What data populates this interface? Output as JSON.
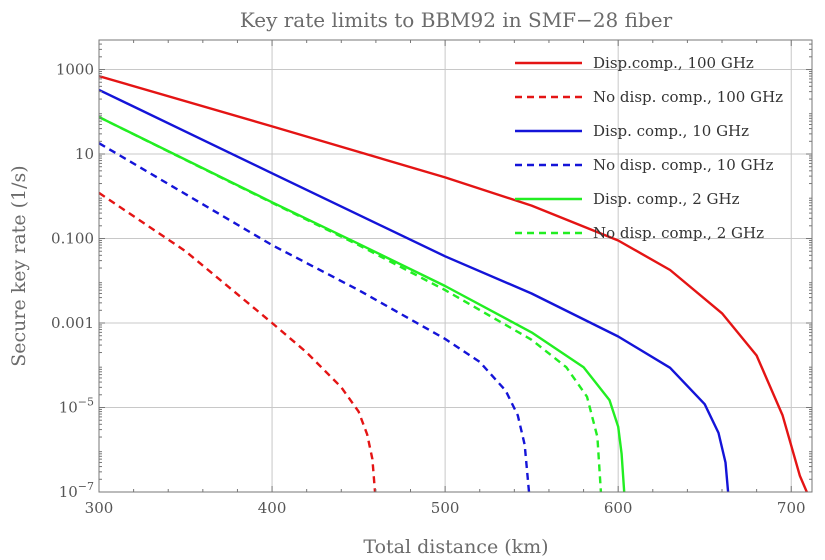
{
  "chart_data": {
    "type": "line",
    "title": "Key rate limits to BBM92 in SMF−28 fiber",
    "xlabel": "Total distance (km)",
    "ylabel": "Secure key rate (1/s)",
    "xlim": [
      300,
      712
    ],
    "ylim": [
      1e-07,
      5000
    ],
    "yscale": "log",
    "grid": true,
    "legend_position": "top-right",
    "x_ticks": [
      {
        "value": 300,
        "label": "300"
      },
      {
        "value": 400,
        "label": "400"
      },
      {
        "value": 500,
        "label": "500"
      },
      {
        "value": 600,
        "label": "600"
      },
      {
        "value": 700,
        "label": "700"
      }
    ],
    "y_ticks": [
      {
        "value": 1000,
        "label": "1000",
        "sup": ""
      },
      {
        "value": 10,
        "label": "10",
        "sup": ""
      },
      {
        "value": 0.1,
        "label": "0.100",
        "sup": ""
      },
      {
        "value": 0.001,
        "label": "0.001",
        "sup": ""
      },
      {
        "value": 1e-05,
        "label": "10",
        "sup": "−5"
      },
      {
        "value": 1e-07,
        "label": "10",
        "sup": "−7"
      }
    ],
    "series": [
      {
        "name": "Disp.comp., 100 GHz",
        "color": "#e41414",
        "dash": "solid",
        "points": [
          [
            300,
            700
          ],
          [
            400,
            45
          ],
          [
            500,
            2.8
          ],
          [
            550,
            0.6
          ],
          [
            600,
            0.09
          ],
          [
            630,
            0.018
          ],
          [
            660,
            0.0017
          ],
          [
            680,
            0.00017
          ],
          [
            695,
            6.5e-06
          ],
          [
            705,
            2.4e-07
          ],
          [
            709,
            1e-07
          ]
        ]
      },
      {
        "name": "No disp. comp., 100 GHz",
        "color": "#e41414",
        "dash": "dashed",
        "points": [
          [
            300,
            1.2
          ],
          [
            350,
            0.05
          ],
          [
            400,
            0.001
          ],
          [
            420,
            0.0002
          ],
          [
            440,
            3e-05
          ],
          [
            450,
            8e-06
          ],
          [
            455,
            2.3e-06
          ],
          [
            458,
            6e-07
          ],
          [
            459.5,
            1e-07
          ]
        ]
      },
      {
        "name": "Disp. comp., 10 GHz",
        "color": "#1414d8",
        "dash": "solid",
        "points": [
          [
            300,
            330
          ],
          [
            400,
            3.5
          ],
          [
            500,
            0.038
          ],
          [
            550,
            0.005
          ],
          [
            600,
            0.00048
          ],
          [
            630,
            8.7e-05
          ],
          [
            650,
            1.2e-05
          ],
          [
            658,
            2.5e-06
          ],
          [
            662,
            5e-07
          ],
          [
            663.5,
            1e-07
          ]
        ]
      },
      {
        "name": "No disp. comp., 10 GHz",
        "color": "#1414d8",
        "dash": "dashed",
        "points": [
          [
            300,
            18
          ],
          [
            400,
            0.07
          ],
          [
            450,
            0.006
          ],
          [
            500,
            0.00042
          ],
          [
            520,
            0.00012
          ],
          [
            535,
            2.5e-05
          ],
          [
            542,
            6.5e-06
          ],
          [
            546,
            1.3e-06
          ],
          [
            548.5,
            1e-07
          ]
        ]
      },
      {
        "name": "Disp. comp., 2 GHz",
        "color": "#22ee22",
        "dash": "solid",
        "points": [
          [
            300,
            75
          ],
          [
            400,
            0.72
          ],
          [
            450,
            0.075
          ],
          [
            500,
            0.0075
          ],
          [
            550,
            0.0006
          ],
          [
            580,
            9e-05
          ],
          [
            595,
            1.5e-05
          ],
          [
            600,
            3.5e-06
          ],
          [
            602,
            8e-07
          ],
          [
            603.5,
            1e-07
          ]
        ]
      },
      {
        "name": "No disp. comp., 2 GHz",
        "color": "#22ee22",
        "dash": "dashed",
        "points": [
          [
            300,
            75
          ],
          [
            400,
            0.7
          ],
          [
            450,
            0.07
          ],
          [
            500,
            0.006
          ],
          [
            550,
            0.0004
          ],
          [
            570,
            9e-05
          ],
          [
            582,
            1.8e-05
          ],
          [
            588,
            2e-06
          ],
          [
            590,
            1e-07
          ]
        ]
      }
    ]
  }
}
